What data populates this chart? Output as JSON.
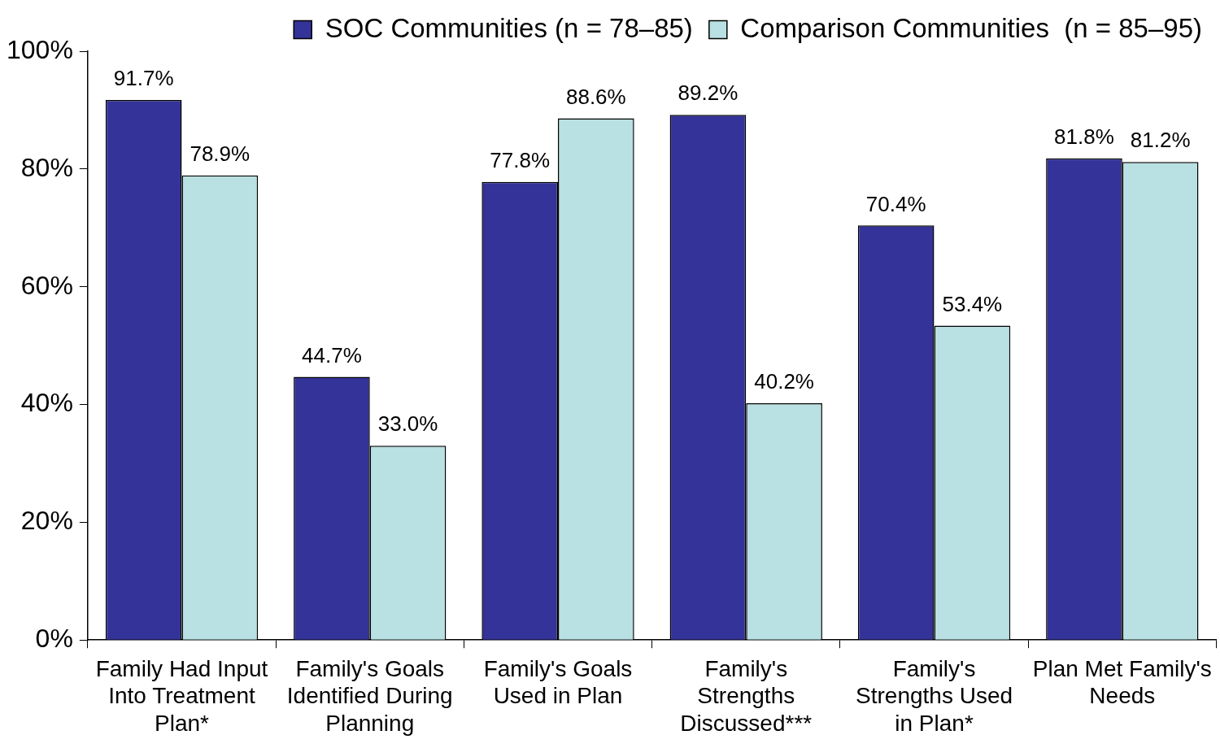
{
  "chart_data": {
    "type": "bar",
    "categories": [
      "Family Had Input Into Treatment Plan*",
      "Family's Goals Identified During Planning",
      "Family's Goals Used in Plan",
      "Family's Strengths Discussed***",
      "Family's Strengths Used in Plan*",
      "Plan Met Family's Needs"
    ],
    "series": [
      {
        "name": "SOC Communities (n = 78–85)",
        "color": "#333399",
        "values": [
          91.7,
          44.7,
          77.8,
          89.2,
          70.4,
          81.8
        ],
        "value_labels": [
          "91.7%",
          "44.7%",
          "77.8%",
          "89.2%",
          "70.4%",
          "81.8%"
        ]
      },
      {
        "name": "Comparison Communities  (n = 85–95)",
        "color": "#b9e0e2",
        "values": [
          78.9,
          33.0,
          88.6,
          40.2,
          53.4,
          81.2
        ],
        "value_labels": [
          "78.9%",
          "33.0%",
          "88.6%",
          "40.2%",
          "53.4%",
          "81.2%"
        ]
      }
    ],
    "ylim": [
      0,
      100
    ],
    "yticks": [
      {
        "value": 0,
        "label": "0%"
      },
      {
        "value": 20,
        "label": "20%"
      },
      {
        "value": 40,
        "label": "40%"
      },
      {
        "value": 60,
        "label": "60%"
      },
      {
        "value": 80,
        "label": "80%"
      },
      {
        "value": 100,
        "label": "100%"
      }
    ],
    "grid": false,
    "legend": "top right"
  }
}
